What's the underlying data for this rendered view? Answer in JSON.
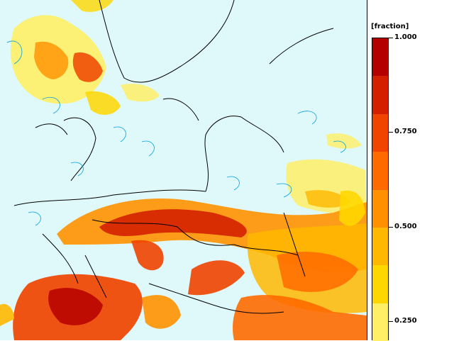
{
  "legend": {
    "unit": "[fraction]",
    "ticks": [
      {
        "value": "1.000",
        "level": 1.0
      },
      {
        "value": "0.750",
        "level": 0.75
      },
      {
        "value": "0.500",
        "level": 0.5
      },
      {
        "value": "0.250",
        "level": 0.25
      }
    ],
    "colors": [
      "#ffff99",
      "#ffef66",
      "#ffd700",
      "#ffb800",
      "#ff9100",
      "#ff6a00",
      "#f04400",
      "#d42000",
      "#b50000"
    ]
  },
  "map": {
    "background_color": "#dff9fb",
    "border_color": "#000000",
    "contour_color": "#00a0e0"
  }
}
